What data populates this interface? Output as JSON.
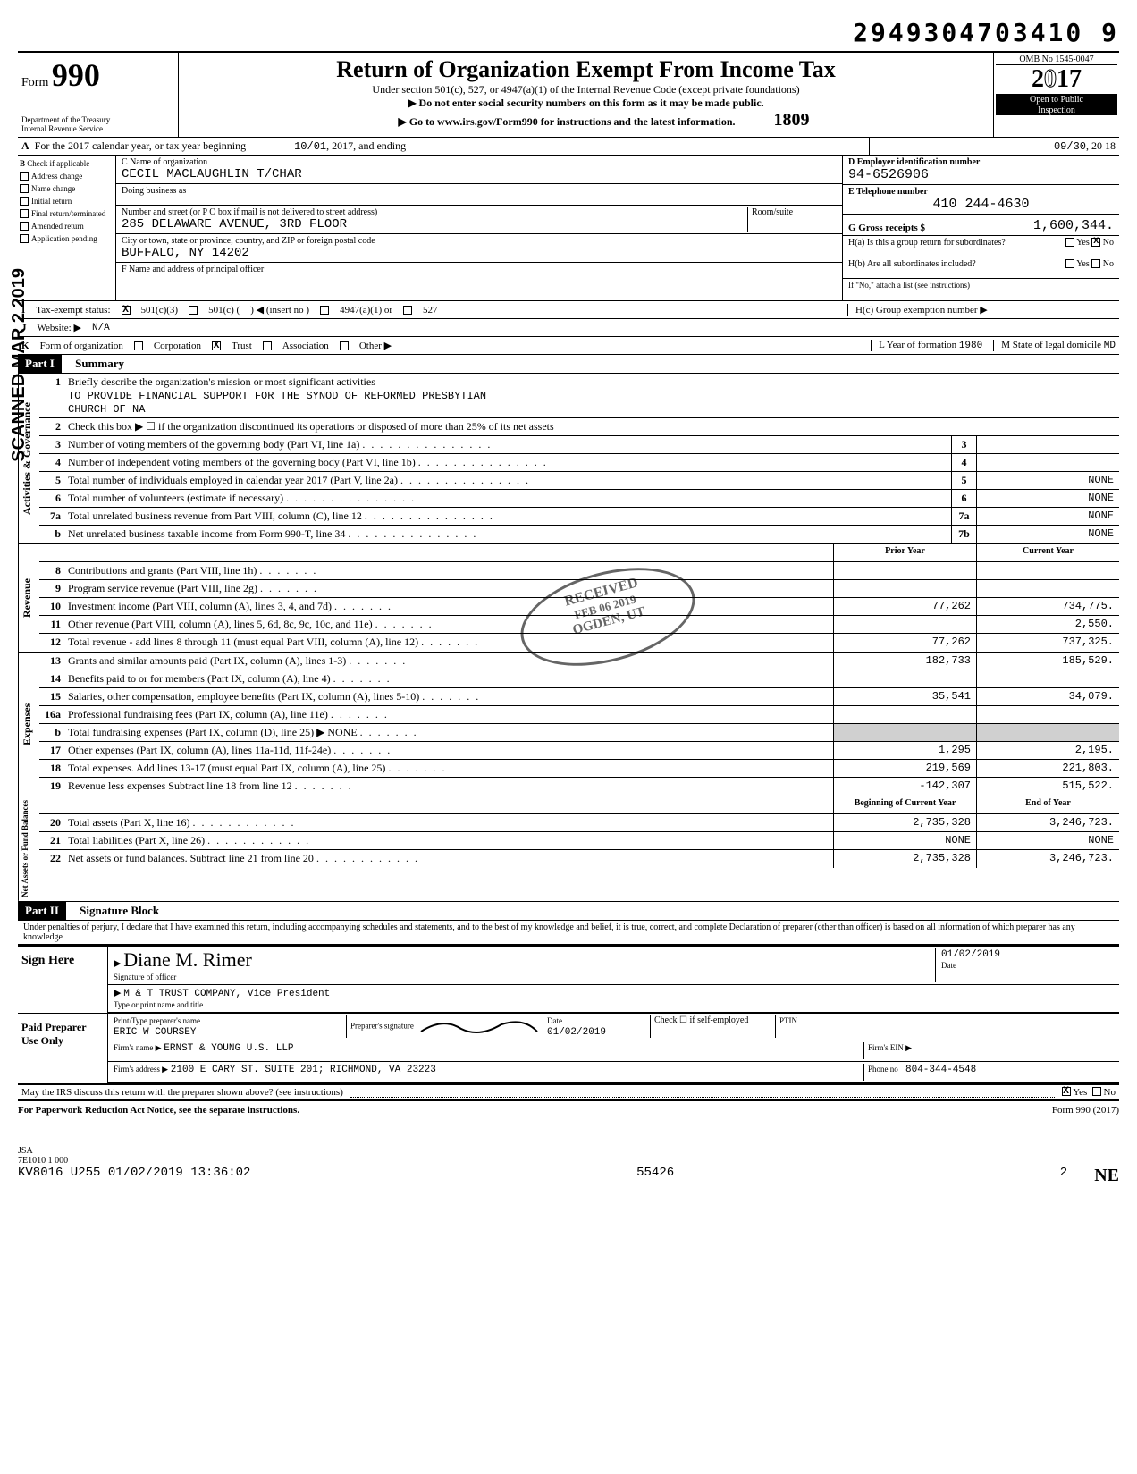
{
  "barcode": "2949304703410 9",
  "form": {
    "label": "Form",
    "number": "990",
    "dept": "Department of the Treasury",
    "irs": "Internal Revenue Service"
  },
  "header": {
    "title": "Return of Organization Exempt From Income Tax",
    "sub1": "Under section 501(c), 527, or 4947(a)(1) of the Internal Revenue Code (except private foundations)",
    "sub2": "▶ Do not enter social security numbers on this form as it may be made public.",
    "sub3": "▶ Go to www.irs.gov/Form990 for instructions and the latest information.",
    "omb": "OMB No 1545-0047",
    "year": "2017",
    "open": "Open to Public",
    "inspection": "Inspection",
    "handwritten_code": "1809"
  },
  "line_a": {
    "label": "For the 2017 calendar year, or tax year beginning",
    "begin": "10/01",
    "begin_year": "2017, and ending",
    "end": "09/30",
    "end_year": "20 18"
  },
  "box_b": {
    "header": "Check if applicable",
    "items": [
      "Address change",
      "Name change",
      "Initial return",
      "Final return/terminated",
      "Amended return",
      "Application pending"
    ]
  },
  "box_c": {
    "name_label": "C Name of organization",
    "name": "CECIL MACLAUGHLIN T/CHAR",
    "dba_label": "Doing business as",
    "dba": "",
    "addr_label": "Number and street (or P O box if mail is not delivered to street address)",
    "room_label": "Room/suite",
    "addr": "285 DELAWARE AVENUE, 3RD FLOOR",
    "city_label": "City or town, state or province, country, and ZIP or foreign postal code",
    "city": "BUFFALO, NY  14202",
    "officer_label": "F Name and address of principal officer"
  },
  "box_d": {
    "ein_label": "D Employer identification number",
    "ein": "94-6526906",
    "phone_label": "E Telephone number",
    "phone": "410 244-4630",
    "gross_label": "G Gross receipts $",
    "gross": "1,600,344.",
    "ha_label": "H(a) Is this a group return for subordinates?",
    "ha_yes": "Yes",
    "ha_no": "No",
    "hb_label": "H(b) Are all subordinates included?",
    "hb_note": "If \"No,\" attach a list (see instructions)",
    "hc_label": "H(c) Group exemption number ▶"
  },
  "status": {
    "label_i": "Tax-exempt status:",
    "c501c3": "501(c)(3)",
    "c501c": "501(c) (",
    "insert": ") ◀  (insert no )",
    "c4947": "4947(a)(1) or",
    "c527": "527",
    "label_j": "Website: ▶",
    "website": "N/A",
    "label_k": "Form of organization",
    "corp": "Corporation",
    "trust": "Trust",
    "assoc": "Association",
    "other": "Other ▶",
    "label_l": "L Year of formation",
    "year_l": "1980",
    "label_m": "M State of legal domicile",
    "state_m": "MD"
  },
  "part1": {
    "header": "Part I",
    "title": "Summary",
    "sections": {
      "governance": "Activities & Governance",
      "revenue": "Revenue",
      "expenses": "Expenses",
      "net": "Net Assets or Fund Balances"
    },
    "line1_label": "Briefly describe the organization's mission or most significant activities",
    "line1_val1": "TO PROVIDE FINANCIAL SUPPORT FOR THE SYNOD OF REFORMED PRESBYTIAN",
    "line1_val2": "CHURCH OF NA",
    "line2": "Check this box ▶ ☐ if the organization discontinued its operations or disposed of more than 25% of its net assets",
    "lines": [
      {
        "n": "3",
        "desc": "Number of voting members of the governing body (Part VI, line 1a)",
        "box": "3",
        "val": ""
      },
      {
        "n": "4",
        "desc": "Number of independent voting members of the governing body (Part VI, line 1b)",
        "box": "4",
        "val": ""
      },
      {
        "n": "5",
        "desc": "Total number of individuals employed in calendar year 2017 (Part V, line 2a)",
        "box": "5",
        "val": "NONE"
      },
      {
        "n": "6",
        "desc": "Total number of volunteers (estimate if necessary)",
        "box": "6",
        "val": "NONE"
      },
      {
        "n": "7a",
        "desc": "Total unrelated business revenue from Part VIII, column (C), line 12",
        "box": "7a",
        "val": "NONE"
      },
      {
        "n": "b",
        "desc": "Net unrelated business taxable income from Form 990-T, line 34",
        "box": "7b",
        "val": "NONE"
      }
    ],
    "col_headers": {
      "prior": "Prior Year",
      "current": "Current Year"
    },
    "revenue": [
      {
        "n": "8",
        "desc": "Contributions and grants (Part VIII, line 1h)",
        "prior": "",
        "current": ""
      },
      {
        "n": "9",
        "desc": "Program service revenue (Part VIII, line 2g)",
        "prior": "",
        "current": ""
      },
      {
        "n": "10",
        "desc": "Investment income (Part VIII, column (A), lines 3, 4, and 7d)",
        "prior": "77,262",
        "current": "734,775."
      },
      {
        "n": "11",
        "desc": "Other revenue (Part VIII, column (A), lines 5, 6d, 8c, 9c, 10c, and 11e)",
        "prior": "",
        "current": "2,550."
      },
      {
        "n": "12",
        "desc": "Total revenue - add lines 8 through 11 (must equal Part VIII, column (A), line 12)",
        "prior": "77,262",
        "current": "737,325."
      }
    ],
    "expenses": [
      {
        "n": "13",
        "desc": "Grants and similar amounts paid (Part IX, column (A), lines 1-3)",
        "prior": "182,733",
        "current": "185,529."
      },
      {
        "n": "14",
        "desc": "Benefits paid to or for members (Part IX, column (A), line 4)",
        "prior": "",
        "current": ""
      },
      {
        "n": "15",
        "desc": "Salaries, other compensation, employee benefits (Part IX, column (A), lines 5-10)",
        "prior": "35,541",
        "current": "34,079."
      },
      {
        "n": "16a",
        "desc": "Professional fundraising fees (Part IX, column (A), line 11e)",
        "prior": "",
        "current": ""
      },
      {
        "n": "b",
        "desc": "Total fundraising expenses (Part IX, column (D), line 25) ▶             NONE",
        "prior": "",
        "current": "",
        "shaded": true
      },
      {
        "n": "17",
        "desc": "Other expenses (Part IX, column (A), lines 11a-11d, 11f-24e)",
        "prior": "1,295",
        "current": "2,195."
      },
      {
        "n": "18",
        "desc": "Total expenses. Add lines 13-17 (must equal Part IX, column (A), line 25)",
        "prior": "219,569",
        "current": "221,803."
      },
      {
        "n": "19",
        "desc": "Revenue less expenses Subtract line 18 from line 12",
        "prior": "-142,307",
        "current": "515,522."
      }
    ],
    "net_headers": {
      "begin": "Beginning of Current Year",
      "end": "End of Year"
    },
    "net": [
      {
        "n": "20",
        "desc": "Total assets (Part X, line 16)",
        "begin": "2,735,328",
        "end": "3,246,723."
      },
      {
        "n": "21",
        "desc": "Total liabilities (Part X, line 26)",
        "begin": "NONE",
        "end": "NONE"
      },
      {
        "n": "22",
        "desc": "Net assets or fund balances. Subtract line 21 from line 20",
        "begin": "2,735,328",
        "end": "3,246,723."
      }
    ]
  },
  "part2": {
    "header": "Part II",
    "title": "Signature Block",
    "perjury": "Under penalties of perjury, I declare that I have examined this return, including accompanying schedules and statements, and to the best of my knowledge and belief, it is true, correct, and complete Declaration of preparer (other than officer) is based on all information of which preparer has any knowledge",
    "sign_here": "Sign Here",
    "sig_cursive": "Diane M. Rimer",
    "sig_label": "Signature of officer",
    "sig_date": "01/02/2019",
    "date_label": "Date",
    "name_title": "M & T TRUST COMPANY, Vice President",
    "name_title_label": "Type or print name and title",
    "paid": "Paid Preparer Use Only",
    "prep_name_label": "Print/Type preparer's name",
    "prep_name": "ERIC W COURSEY",
    "prep_sig_label": "Preparer's signature",
    "prep_date": "01/02/2019",
    "check_self": "Check ☐ if self-employed",
    "ptin_label": "PTIN",
    "firm_name_label": "Firm's name ▶",
    "firm_name": "ERNST & YOUNG U.S. LLP",
    "firm_ein_label": "Firm's EIN ▶",
    "firm_addr_label": "Firm's address ▶",
    "firm_addr": "2100 E CARY ST. SUITE 201; RICHMOND, VA  23223",
    "phone_label": "Phone no",
    "phone": "804-344-4548",
    "discuss": "May the IRS discuss this return with the preparer shown above? (see instructions)",
    "yes": "Yes",
    "no": "No"
  },
  "footer": {
    "paperwork": "For Paperwork Reduction Act Notice, see the separate instructions.",
    "form_label": "Form 990 (2017)",
    "jsa": "JSA",
    "code": "7E1010 1 000",
    "batch": "KV8016 U255 01/02/2019 13:36:02",
    "seq": "55426",
    "page": "2"
  },
  "scanned": "SCANNED MAR 2 2019",
  "received": {
    "l1": "RECEIVED",
    "l2": "FEB 06 2019",
    "l3": "OGDEN, UT"
  }
}
